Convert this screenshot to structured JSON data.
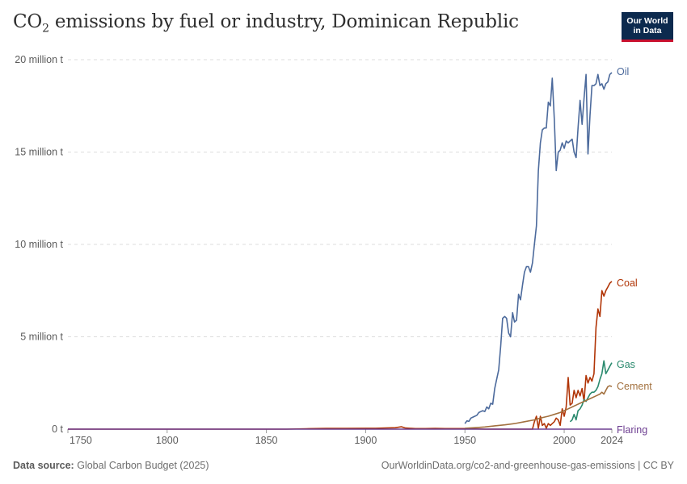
{
  "header": {
    "title_main": "CO",
    "title_sub": "2",
    "title_rest": " emissions by fuel or industry, Dominican Republic",
    "logo_line1": "Our World",
    "logo_line2": "in Data"
  },
  "footer": {
    "source_label": "Data source:",
    "source_value": "Global Carbon Budget (2025)",
    "right": "OurWorldinData.org/co2-and-greenhouse-gas-emissions | CC BY"
  },
  "colors": {
    "Oil": "#4c6a9c",
    "Coal": "#b13507",
    "Gas": "#2a8a6e",
    "Cement": "#a2703e",
    "Flaring": "#6d3e91",
    "grid": "#dddddd",
    "axis": "#999999"
  },
  "chart_data": {
    "type": "line",
    "title": "CO₂ emissions by fuel or industry, Dominican Republic",
    "xlim": [
      1750,
      2024
    ],
    "ylim": [
      0,
      20000000
    ],
    "y_ticks": [
      {
        "value": 0,
        "label": "0 t"
      },
      {
        "value": 5000000,
        "label": "5 million t"
      },
      {
        "value": 10000000,
        "label": "10 million t"
      },
      {
        "value": 15000000,
        "label": "15 million t"
      },
      {
        "value": 20000000,
        "label": "20 million t"
      }
    ],
    "x_ticks": [
      {
        "value": 1750,
        "label": "1750"
      },
      {
        "value": 1800,
        "label": "1800"
      },
      {
        "value": 1850,
        "label": "1850"
      },
      {
        "value": 1900,
        "label": "1900"
      },
      {
        "value": 1950,
        "label": "1950"
      },
      {
        "value": 2000,
        "label": "2000"
      },
      {
        "value": 2024,
        "label": "2024"
      }
    ],
    "grid": "horizontal-dashed",
    "legend": "line-end labels",
    "series": [
      {
        "name": "Oil",
        "x": [
          1950,
          1951,
          1952,
          1953,
          1954,
          1955,
          1956,
          1957,
          1958,
          1959,
          1960,
          1961,
          1962,
          1963,
          1964,
          1965,
          1966,
          1967,
          1968,
          1969,
          1970,
          1971,
          1972,
          1973,
          1974,
          1975,
          1976,
          1977,
          1978,
          1979,
          1980,
          1981,
          1982,
          1983,
          1984,
          1985,
          1986,
          1987,
          1988,
          1989,
          1990,
          1991,
          1992,
          1993,
          1994,
          1995,
          1996,
          1997,
          1998,
          1999,
          2000,
          2001,
          2002,
          2003,
          2004,
          2005,
          2006,
          2007,
          2008,
          2009,
          2010,
          2011,
          2012,
          2013,
          2014,
          2015,
          2016,
          2017,
          2018,
          2019,
          2020,
          2021,
          2022,
          2023,
          2024
        ],
        "values": [
          300000,
          450000,
          420000,
          600000,
          650000,
          700000,
          750000,
          900000,
          950000,
          1000000,
          950000,
          1200000,
          1100000,
          1400000,
          1350000,
          2200000,
          2700000,
          3200000,
          4500000,
          6000000,
          6100000,
          6000000,
          5200000,
          5000000,
          6300000,
          5800000,
          5900000,
          7300000,
          7000000,
          7800000,
          8500000,
          8800000,
          8800000,
          8500000,
          9000000,
          10000000,
          11000000,
          14000000,
          15500000,
          16200000,
          16300000,
          16300000,
          17700000,
          17500000,
          19000000,
          16800000,
          14000000,
          15000000,
          15100000,
          15500000,
          15200000,
          15600000,
          15500000,
          15600000,
          15700000,
          15000000,
          14700000,
          16300000,
          17800000,
          16500000,
          17900000,
          19200000,
          14900000,
          17000000,
          18600000,
          18600000,
          18700000,
          19200000,
          18600000,
          18700000,
          18400000,
          18700000,
          18800000,
          19200000,
          19300000
        ]
      },
      {
        "name": "Coal",
        "x": [
          1750,
          1860,
          1870,
          1880,
          1890,
          1900,
          1905,
          1910,
          1915,
          1918,
          1920,
          1925,
          1930,
          1935,
          1940,
          1945,
          1950,
          1960,
          1970,
          1980,
          1984,
          1985,
          1986,
          1987,
          1988,
          1989,
          1990,
          1991,
          1992,
          1993,
          1994,
          1995,
          1996,
          1997,
          1998,
          1999,
          2000,
          2001,
          2002,
          2003,
          2004,
          2005,
          2006,
          2007,
          2008,
          2009,
          2010,
          2011,
          2012,
          2013,
          2014,
          2015,
          2016,
          2017,
          2018,
          2019,
          2020,
          2021,
          2022,
          2023,
          2024
        ],
        "values": [
          0,
          0,
          20000,
          40000,
          40000,
          50000,
          50000,
          60000,
          80000,
          130000,
          60000,
          30000,
          30000,
          40000,
          30000,
          30000,
          30000,
          0,
          0,
          0,
          0,
          400000,
          700000,
          50000,
          700000,
          200000,
          300000,
          50000,
          300000,
          200000,
          300000,
          400000,
          600000,
          500000,
          200000,
          1100000,
          700000,
          1200000,
          2800000,
          1300000,
          1400000,
          2100000,
          1700000,
          2100000,
          1800000,
          2200000,
          1500000,
          2900000,
          2500000,
          2800000,
          2600000,
          3000000,
          5500000,
          6500000,
          6100000,
          7500000,
          7200000,
          7500000,
          7700000,
          7900000,
          8000000
        ]
      },
      {
        "name": "Gas",
        "x": [
          2003,
          2004,
          2005,
          2006,
          2007,
          2008,
          2009,
          2010,
          2011,
          2012,
          2013,
          2014,
          2015,
          2016,
          2017,
          2018,
          2019,
          2020,
          2021,
          2022,
          2023,
          2024
        ],
        "values": [
          400000,
          500000,
          800000,
          500000,
          1000000,
          1100000,
          1300000,
          1600000,
          1500000,
          1700000,
          1900000,
          2000000,
          2000000,
          2100000,
          2300000,
          2700000,
          3000000,
          3700000,
          3000000,
          3200000,
          3400000,
          3600000
        ]
      },
      {
        "name": "Cement",
        "x": [
          1950,
          1955,
          1960,
          1965,
          1970,
          1975,
          1980,
          1985,
          1988,
          1990,
          1992,
          1995,
          1998,
          2000,
          2002,
          2004,
          2006,
          2008,
          2010,
          2012,
          2014,
          2016,
          2018,
          2019,
          2020,
          2021,
          2022,
          2023,
          2024
        ],
        "values": [
          50000,
          80000,
          120000,
          180000,
          230000,
          300000,
          400000,
          500000,
          600000,
          650000,
          700000,
          800000,
          900000,
          1000000,
          1100000,
          1200000,
          1300000,
          1400000,
          1500000,
          1600000,
          1700000,
          1800000,
          1900000,
          2000000,
          1900000,
          2100000,
          2300000,
          2350000,
          2300000
        ]
      },
      {
        "name": "Flaring",
        "x": [
          1750,
          2024
        ],
        "values": [
          0,
          0
        ]
      }
    ]
  }
}
